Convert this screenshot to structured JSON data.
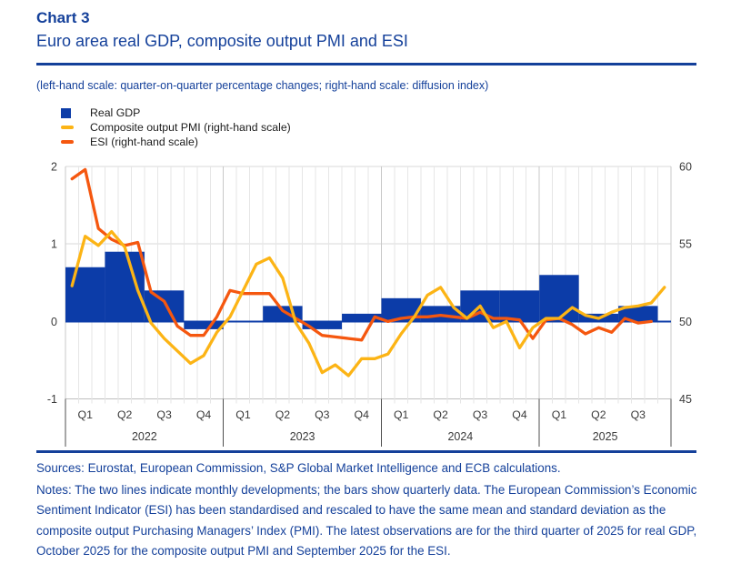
{
  "header": {
    "chart_label": "Chart 3",
    "title": "Euro area real GDP, composite output PMI and ESI",
    "scale_note": "(left-hand scale: quarter-on-quarter percentage changes; right-hand scale: diffusion index)"
  },
  "colors": {
    "accent_blue": "#14409a",
    "bar_navy": "#0c3ca8",
    "pmi_yellow": "#fcb415",
    "esi_orange": "#f5570f",
    "axis_text": "#3a3a3a",
    "gridline": "#d9d9d9"
  },
  "chart_data": {
    "type": "combo_bar_line",
    "left_axis": {
      "description": "quarter-on-quarter percentage changes",
      "min": -1,
      "max": 2,
      "tick_labels": [
        "2",
        "1",
        "0",
        "-1"
      ],
      "tick_values": [
        2,
        1,
        0,
        -1
      ]
    },
    "right_axis": {
      "description": "diffusion index",
      "min": 45,
      "max": 60,
      "tick_labels": [
        "60",
        "55",
        "50",
        "45"
      ],
      "tick_values": [
        60,
        55,
        50,
        45
      ]
    },
    "x_axis": {
      "months_start": "2022-01",
      "months_total": 46,
      "years": [
        {
          "label": "2022",
          "months": 12,
          "quarter_labels": [
            "Q1",
            "Q2",
            "Q3",
            "Q4"
          ]
        },
        {
          "label": "2023",
          "months": 12,
          "quarter_labels": [
            "Q1",
            "Q2",
            "Q3",
            "Q4"
          ]
        },
        {
          "label": "2024",
          "months": 12,
          "quarter_labels": [
            "Q1",
            "Q2",
            "Q3",
            "Q4"
          ]
        },
        {
          "label": "2025",
          "months": 10,
          "quarter_labels": [
            "Q1",
            "Q2",
            "Q3"
          ]
        }
      ]
    },
    "series": [
      {
        "name": "Real GDP",
        "type": "bar",
        "axis": "left",
        "unit": "% quarter-on-quarter",
        "color": "#0c3ca8",
        "quarters": [
          "2022 Q1",
          "2022 Q2",
          "2022 Q3",
          "2022 Q4",
          "2023 Q1",
          "2023 Q2",
          "2023 Q3",
          "2023 Q4",
          "2024 Q1",
          "2024 Q2",
          "2024 Q3",
          "2024 Q4",
          "2025 Q1",
          "2025 Q2",
          "2025 Q3"
        ],
        "values": [
          0.7,
          0.9,
          0.4,
          -0.1,
          0.0,
          0.2,
          -0.1,
          0.1,
          0.3,
          0.2,
          0.4,
          0.4,
          0.6,
          0.1,
          0.2
        ]
      },
      {
        "name": "Composite output PMI (right-hand scale)",
        "type": "line",
        "axis": "right",
        "unit": "diffusion index",
        "color": "#fcb415",
        "first_month": "2022-01",
        "last_month": "2025-10",
        "values": [
          52.3,
          55.5,
          54.9,
          55.8,
          54.8,
          52.0,
          49.9,
          48.9,
          48.1,
          47.3,
          47.8,
          49.3,
          50.3,
          52.0,
          53.7,
          54.1,
          52.8,
          49.9,
          48.6,
          46.7,
          47.2,
          46.5,
          47.6,
          47.6,
          47.9,
          49.2,
          50.3,
          51.7,
          52.2,
          50.9,
          50.2,
          51.0,
          49.6,
          50.0,
          48.3,
          49.6,
          50.2,
          50.2,
          50.9,
          50.4,
          50.2,
          50.6,
          50.9,
          51.0,
          51.2,
          52.2
        ]
      },
      {
        "name": "ESI (right-hand scale)",
        "type": "line",
        "axis": "right",
        "unit": "diffusion index (standardised and rescaled to PMI)",
        "color": "#f5570f",
        "first_month": "2022-01",
        "last_month": "2025-09",
        "values": [
          59.2,
          59.8,
          56.0,
          55.3,
          54.9,
          55.1,
          51.9,
          51.3,
          49.7,
          49.1,
          49.1,
          50.3,
          52.0,
          51.8,
          51.8,
          51.8,
          50.7,
          50.2,
          49.7,
          49.1,
          49.0,
          48.9,
          48.8,
          50.3,
          50.0,
          50.2,
          50.3,
          50.3,
          50.4,
          50.3,
          50.2,
          50.6,
          50.2,
          50.2,
          50.1,
          48.9,
          50.1,
          50.2,
          49.8,
          49.2,
          49.6,
          49.3,
          50.2,
          49.9,
          50.0
        ]
      }
    ]
  },
  "footer": {
    "sources": "Sources: Eurostat, European Commission, S&P Global Market Intelligence and ECB calculations.",
    "notes": "Notes: The two lines indicate monthly developments; the bars show quarterly data. The European Commission’s Economic Sentiment Indicator (ESI) has been standardised and rescaled to have the same mean and standard deviation as the composite output Purchasing Managers’ Index (PMI). The latest observations are for the third quarter of 2025 for real GDP, October 2025 for the composite output PMI and September 2025 for the ESI."
  }
}
